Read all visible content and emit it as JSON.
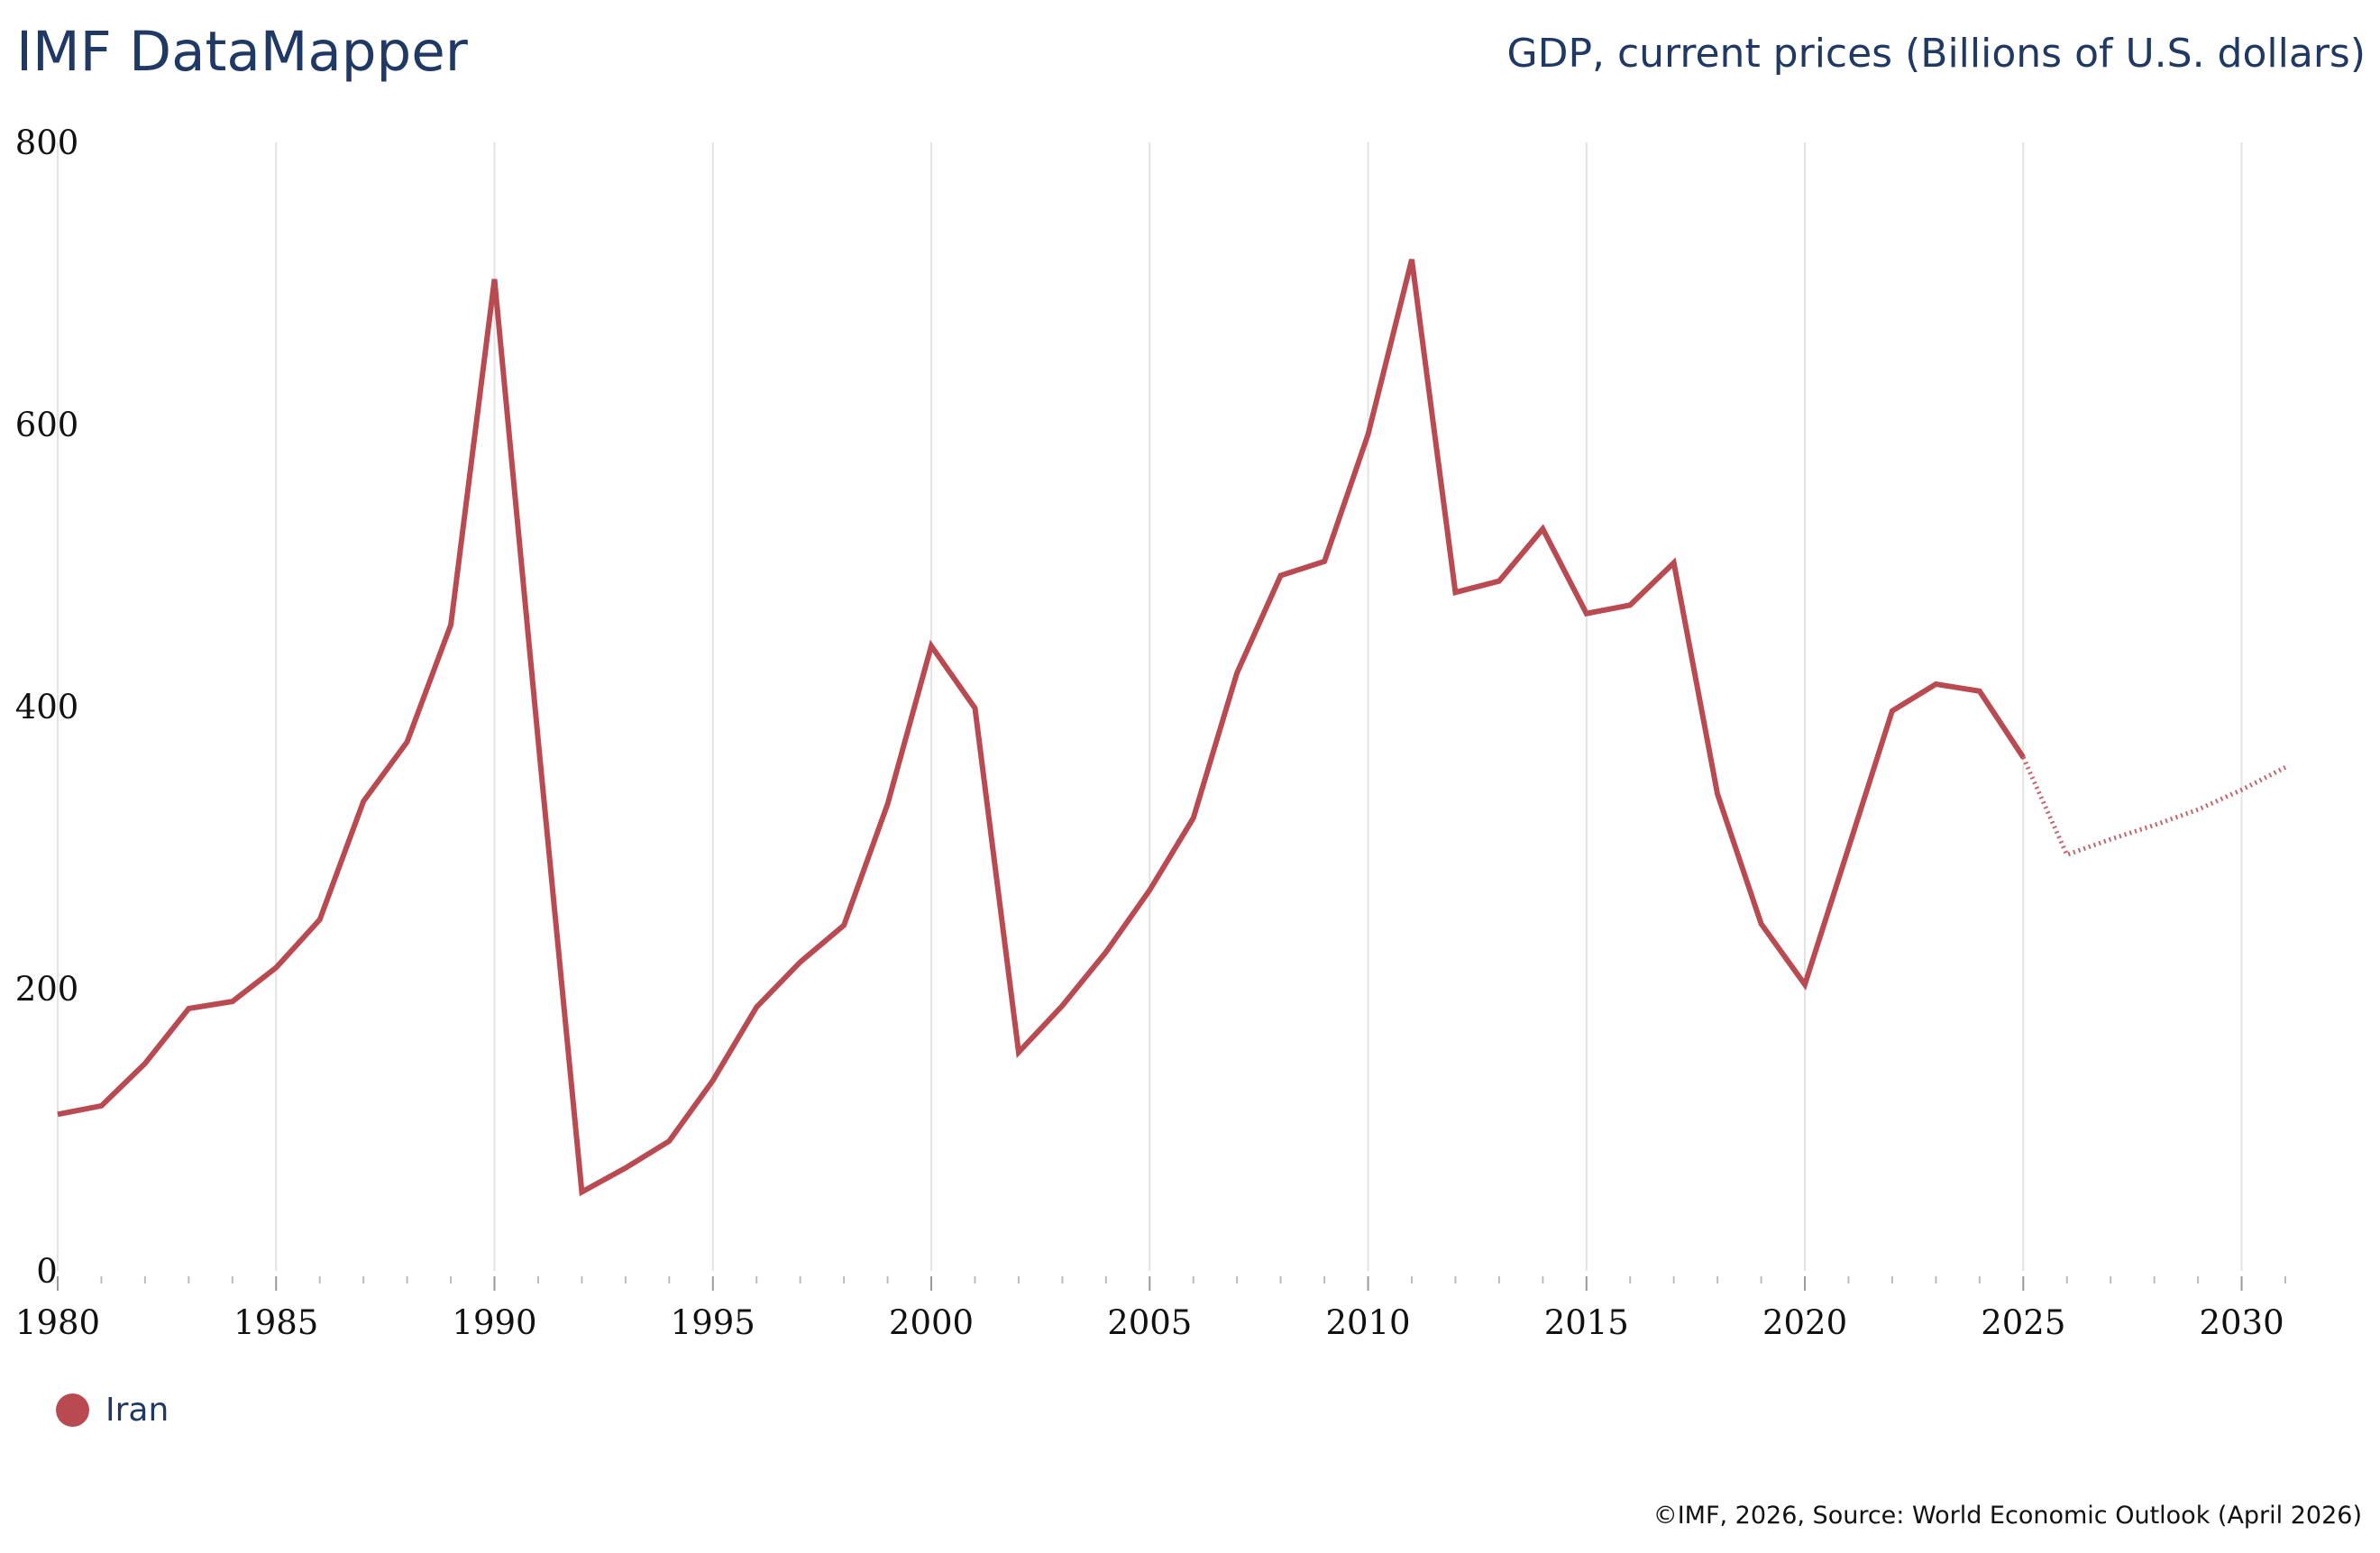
{
  "header": {
    "app_title": "IMF DataMapper",
    "chart_title": "GDP, current prices (Billions of U.S. dollars)"
  },
  "footer": {
    "credit": "©IMF, 2026, Source: World Economic Outlook (April 2026)"
  },
  "legend": {
    "items": [
      {
        "label": "Iran",
        "color": "#b94a52"
      }
    ]
  },
  "chart_data": {
    "type": "line",
    "title": "GDP, current prices (Billions of U.S. dollars)",
    "xlabel": "",
    "ylabel": "",
    "xlim": [
      1980,
      2031
    ],
    "ylim": [
      0,
      800
    ],
    "x_ticks": [
      1980,
      1985,
      1990,
      1995,
      2000,
      2005,
      2010,
      2015,
      2020,
      2025,
      2030
    ],
    "y_ticks": [
      0,
      200,
      400,
      600,
      800
    ],
    "grid": "vertical",
    "legend_position": "bottom-left",
    "forecast_start": 2025,
    "series": [
      {
        "name": "Iran",
        "color": "#b94a52",
        "x": [
          1980,
          1981,
          1982,
          1983,
          1984,
          1985,
          1986,
          1987,
          1988,
          1989,
          1990,
          1991,
          1992,
          1993,
          1994,
          1995,
          1996,
          1997,
          1998,
          1999,
          2000,
          2001,
          2002,
          2003,
          2004,
          2005,
          2006,
          2007,
          2008,
          2009,
          2010,
          2011,
          2012,
          2013,
          2014,
          2015,
          2016,
          2017,
          2018,
          2019,
          2020,
          2021,
          2022,
          2023,
          2024,
          2025,
          2026,
          2027,
          2028,
          2029,
          2030,
          2031
        ],
        "values": [
          111,
          117,
          147,
          186,
          191,
          215,
          249,
          333,
          375,
          458,
          703,
          376,
          56,
          73,
          92,
          135,
          187,
          219,
          245,
          331,
          443,
          399,
          155,
          188,
          226,
          270,
          321,
          424,
          493,
          503,
          593,
          717,
          481,
          489,
          526,
          466,
          472,
          502,
          338,
          246,
          203,
          300,
          397,
          416,
          411,
          364,
          295,
          306,
          316,
          327,
          341,
          357
        ]
      }
    ]
  }
}
